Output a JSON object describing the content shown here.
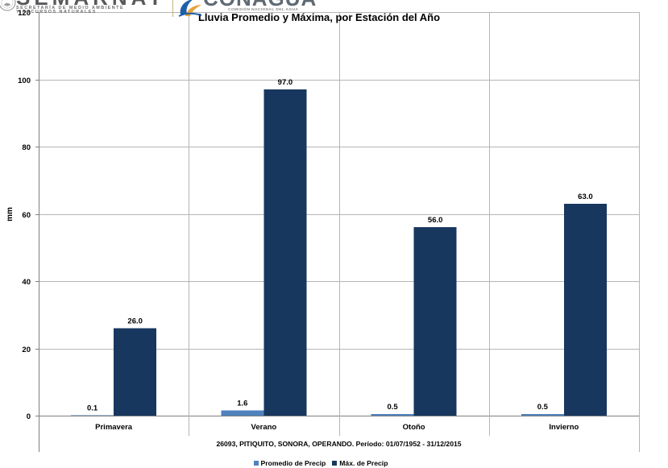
{
  "logos": {
    "semarnat": {
      "icon": "coat-of-arms-icon",
      "name": "SEMARNAT",
      "line1": "SECRETARÍA DE MEDIO AMBIENTE",
      "line2": "Y RECURSOS NATURALES"
    },
    "conagua": {
      "icon": "water-drop-emblem-icon",
      "name": "CONAGUA",
      "subtitle": "COMISIÓN NACIONAL DEL AGUA"
    }
  },
  "chart_data": {
    "type": "bar",
    "title": "Lluvia Promedio y Máxima, por Estación del Año",
    "xlabel": "26093, PITIQUITO, SONORA, OPERANDO. Período: 01/07/1952 - 31/12/2015",
    "ylabel": "mm",
    "categories": [
      "Primavera",
      "Verano",
      "Otoño",
      "Invierno"
    ],
    "series": [
      {
        "name": "Promedio de Precip",
        "color": "#4f81bd",
        "values": [
          0.1,
          1.6,
          0.5,
          0.5
        ]
      },
      {
        "name": "Máx. de Precip",
        "color": "#17375e",
        "values": [
          26.0,
          97.0,
          56.0,
          63.0
        ]
      }
    ],
    "ylim": [
      0,
      120
    ],
    "yticks": [
      0,
      20,
      40,
      60,
      80,
      100,
      120
    ],
    "grid": true,
    "data_labels": true,
    "legend": "bottom"
  }
}
